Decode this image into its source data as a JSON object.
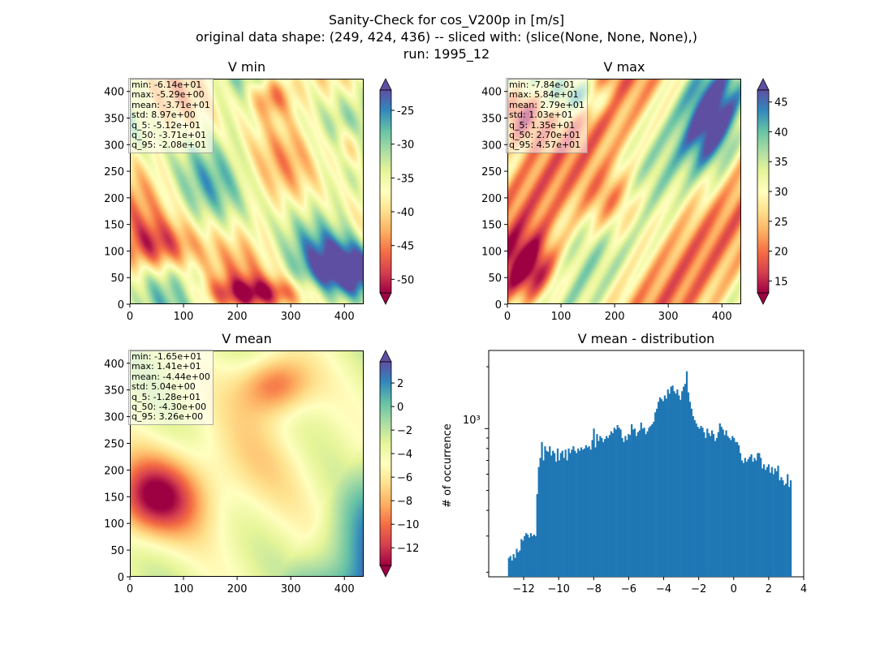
{
  "figure": {
    "title_lines": [
      "Sanity-Check for cos_V200p in [m/s]",
      "original data shape: (249, 424, 436) -- sliced with: (slice(None, None, None),)",
      "run: 1995_12"
    ]
  },
  "colormap": "Spectral",
  "chart_data": [
    {
      "type": "heatmap",
      "title": "V min",
      "xlim": [
        0,
        436
      ],
      "ylim": [
        0,
        424
      ],
      "xticks": [
        "0",
        "100",
        "200",
        "300",
        "400"
      ],
      "yticks": [
        "0",
        "50",
        "100",
        "150",
        "200",
        "250",
        "300",
        "350",
        "400"
      ],
      "colorbar": {
        "range": [
          -52,
          -22
        ],
        "ticks": [
          "-25",
          "-30",
          "-35",
          "-40",
          "-45",
          "-50"
        ],
        "extend": "both"
      },
      "stats": [
        "min: -6.14e+01",
        "max: -5.29e+00",
        "mean: -3.71e+01",
        "std: 8.97e+00",
        "q_5: -5.12e+01",
        "q_50: -3.71e+01",
        "q_95: -2.08e+01"
      ]
    },
    {
      "type": "heatmap",
      "title": "V max",
      "xlim": [
        0,
        436
      ],
      "ylim": [
        0,
        424
      ],
      "xticks": [
        "0",
        "100",
        "200",
        "300",
        "400"
      ],
      "yticks": [
        "0",
        "50",
        "100",
        "150",
        "200",
        "250",
        "300",
        "350",
        "400"
      ],
      "colorbar": {
        "range": [
          13,
          47
        ],
        "ticks": [
          "45",
          "40",
          "35",
          "30",
          "25",
          "20",
          "15"
        ],
        "extend": "both"
      },
      "stats": [
        "min: -7.84e-01",
        "max: 5.84e+01",
        "mean: 2.79e+01",
        "std: 1.03e+01",
        "q_5: 1.35e+01",
        "q_50: 2.70e+01",
        "q_95: 4.57e+01"
      ]
    },
    {
      "type": "heatmap",
      "title": "V mean",
      "xlim": [
        0,
        436
      ],
      "ylim": [
        0,
        424
      ],
      "xticks": [
        "0",
        "100",
        "200",
        "300",
        "400"
      ],
      "yticks": [
        "0",
        "50",
        "100",
        "150",
        "200",
        "250",
        "300",
        "350",
        "400"
      ],
      "colorbar": {
        "range": [
          -13.5,
          3.8
        ],
        "ticks": [
          "2",
          "0",
          "−2",
          "−4",
          "−6",
          "−8",
          "−10",
          "−12"
        ],
        "extend": "both"
      },
      "stats": [
        "min: -1.65e+01",
        "max: 1.41e+01",
        "mean: -4.44e+00",
        "std: 5.04e+00",
        "q_5: -1.28e+01",
        "q_50: -4.30e+00",
        "q_95: 3.26e+00"
      ]
    },
    {
      "type": "bar",
      "title": "V mean - distribution",
      "ylabel": "# of occurrence",
      "yscale": "log",
      "ytick_label": "10³",
      "xlim": [
        -14,
        4
      ],
      "xticks": [
        "−12",
        "−10",
        "−8",
        "−6",
        "−4",
        "−2",
        "0",
        "2",
        "4"
      ],
      "bar_color": "#1f77b4",
      "bin_range": [
        -12.9,
        3.3
      ],
      "counts": [
        235,
        240,
        228,
        245,
        235,
        260,
        250,
        255,
        290,
        285,
        300,
        310,
        305,
        295,
        310,
        300,
        305,
        300,
        480,
        650,
        720,
        860,
        700,
        820,
        780,
        770,
        820,
        740,
        780,
        760,
        690,
        800,
        700,
        760,
        780,
        720,
        790,
        700,
        800,
        760,
        790,
        820,
        780,
        760,
        800,
        780,
        810,
        790,
        800,
        830,
        810,
        820,
        790,
        880,
        1000,
        810,
        940,
        870,
        920,
        900,
        860,
        890,
        920,
        900,
        930,
        970,
        950,
        1010,
        990,
        1040,
        1010,
        990,
        900,
        860,
        920,
        880,
        940,
        930,
        1050,
        990,
        1000,
        920,
        960,
        980,
        1070,
        1000,
        1010,
        940,
        970,
        1010,
        1030,
        1050,
        1080,
        1200,
        1250,
        1350,
        1420,
        1390,
        1360,
        1450,
        1400,
        1550,
        1480,
        1600,
        1620,
        1520,
        1480,
        1550,
        1450,
        1380,
        1520,
        1600,
        1650,
        1900,
        1500,
        1350,
        1250,
        1150,
        1100,
        1060,
        1020,
        1000,
        1030,
        1010,
        960,
        900,
        1000,
        950,
        920,
        980,
        940,
        870,
        900,
        960,
        1060,
        1020,
        990,
        930,
        980,
        920,
        900,
        880,
        920,
        900,
        860,
        860,
        830,
        760,
        700,
        680,
        720,
        690,
        710,
        730,
        750,
        690,
        720,
        700,
        760,
        760,
        720,
        640,
        670,
        630,
        650,
        670,
        610,
        650,
        600,
        640,
        620,
        660,
        560,
        580,
        560,
        530,
        540,
        600,
        520,
        560
      ]
    }
  ]
}
